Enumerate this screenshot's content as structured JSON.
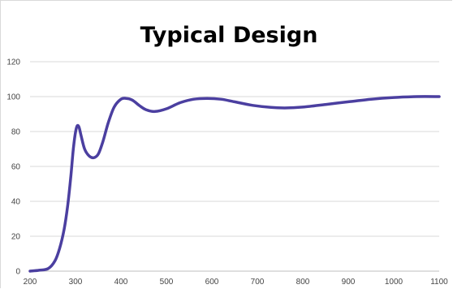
{
  "chart_data": {
    "type": "line",
    "title": "Typical Design",
    "xlabel": "",
    "ylabel": "",
    "xlim": [
      200,
      1100
    ],
    "ylim": [
      0,
      120
    ],
    "x_ticks": [
      "200",
      "300",
      "400",
      "500",
      "600",
      "700",
      "800",
      "900",
      "1000",
      "1100"
    ],
    "y_ticks": [
      "0",
      "20",
      "40",
      "60",
      "80",
      "100",
      "120"
    ],
    "grid": "horizontal",
    "series": [
      {
        "color": "#4b3fa0",
        "points": [
          [
            200,
            0
          ],
          [
            220,
            0.5
          ],
          [
            240,
            1.5
          ],
          [
            255,
            6
          ],
          [
            265,
            13
          ],
          [
            275,
            24
          ],
          [
            283,
            38
          ],
          [
            290,
            55
          ],
          [
            296,
            72
          ],
          [
            302,
            82
          ],
          [
            307,
            83
          ],
          [
            312,
            78
          ],
          [
            320,
            70
          ],
          [
            330,
            66
          ],
          [
            340,
            65
          ],
          [
            350,
            67
          ],
          [
            360,
            74
          ],
          [
            372,
            85
          ],
          [
            385,
            94
          ],
          [
            400,
            98.5
          ],
          [
            412,
            99
          ],
          [
            425,
            98
          ],
          [
            440,
            95
          ],
          [
            455,
            92.5
          ],
          [
            475,
            91.5
          ],
          [
            500,
            93
          ],
          [
            530,
            96.5
          ],
          [
            560,
            98.5
          ],
          [
            590,
            99
          ],
          [
            620,
            98.5
          ],
          [
            650,
            97
          ],
          [
            690,
            95
          ],
          [
            730,
            93.8
          ],
          [
            760,
            93.5
          ],
          [
            800,
            94
          ],
          [
            850,
            95.5
          ],
          [
            900,
            97
          ],
          [
            950,
            98.5
          ],
          [
            1000,
            99.5
          ],
          [
            1050,
            100
          ],
          [
            1100,
            100
          ]
        ]
      }
    ]
  }
}
